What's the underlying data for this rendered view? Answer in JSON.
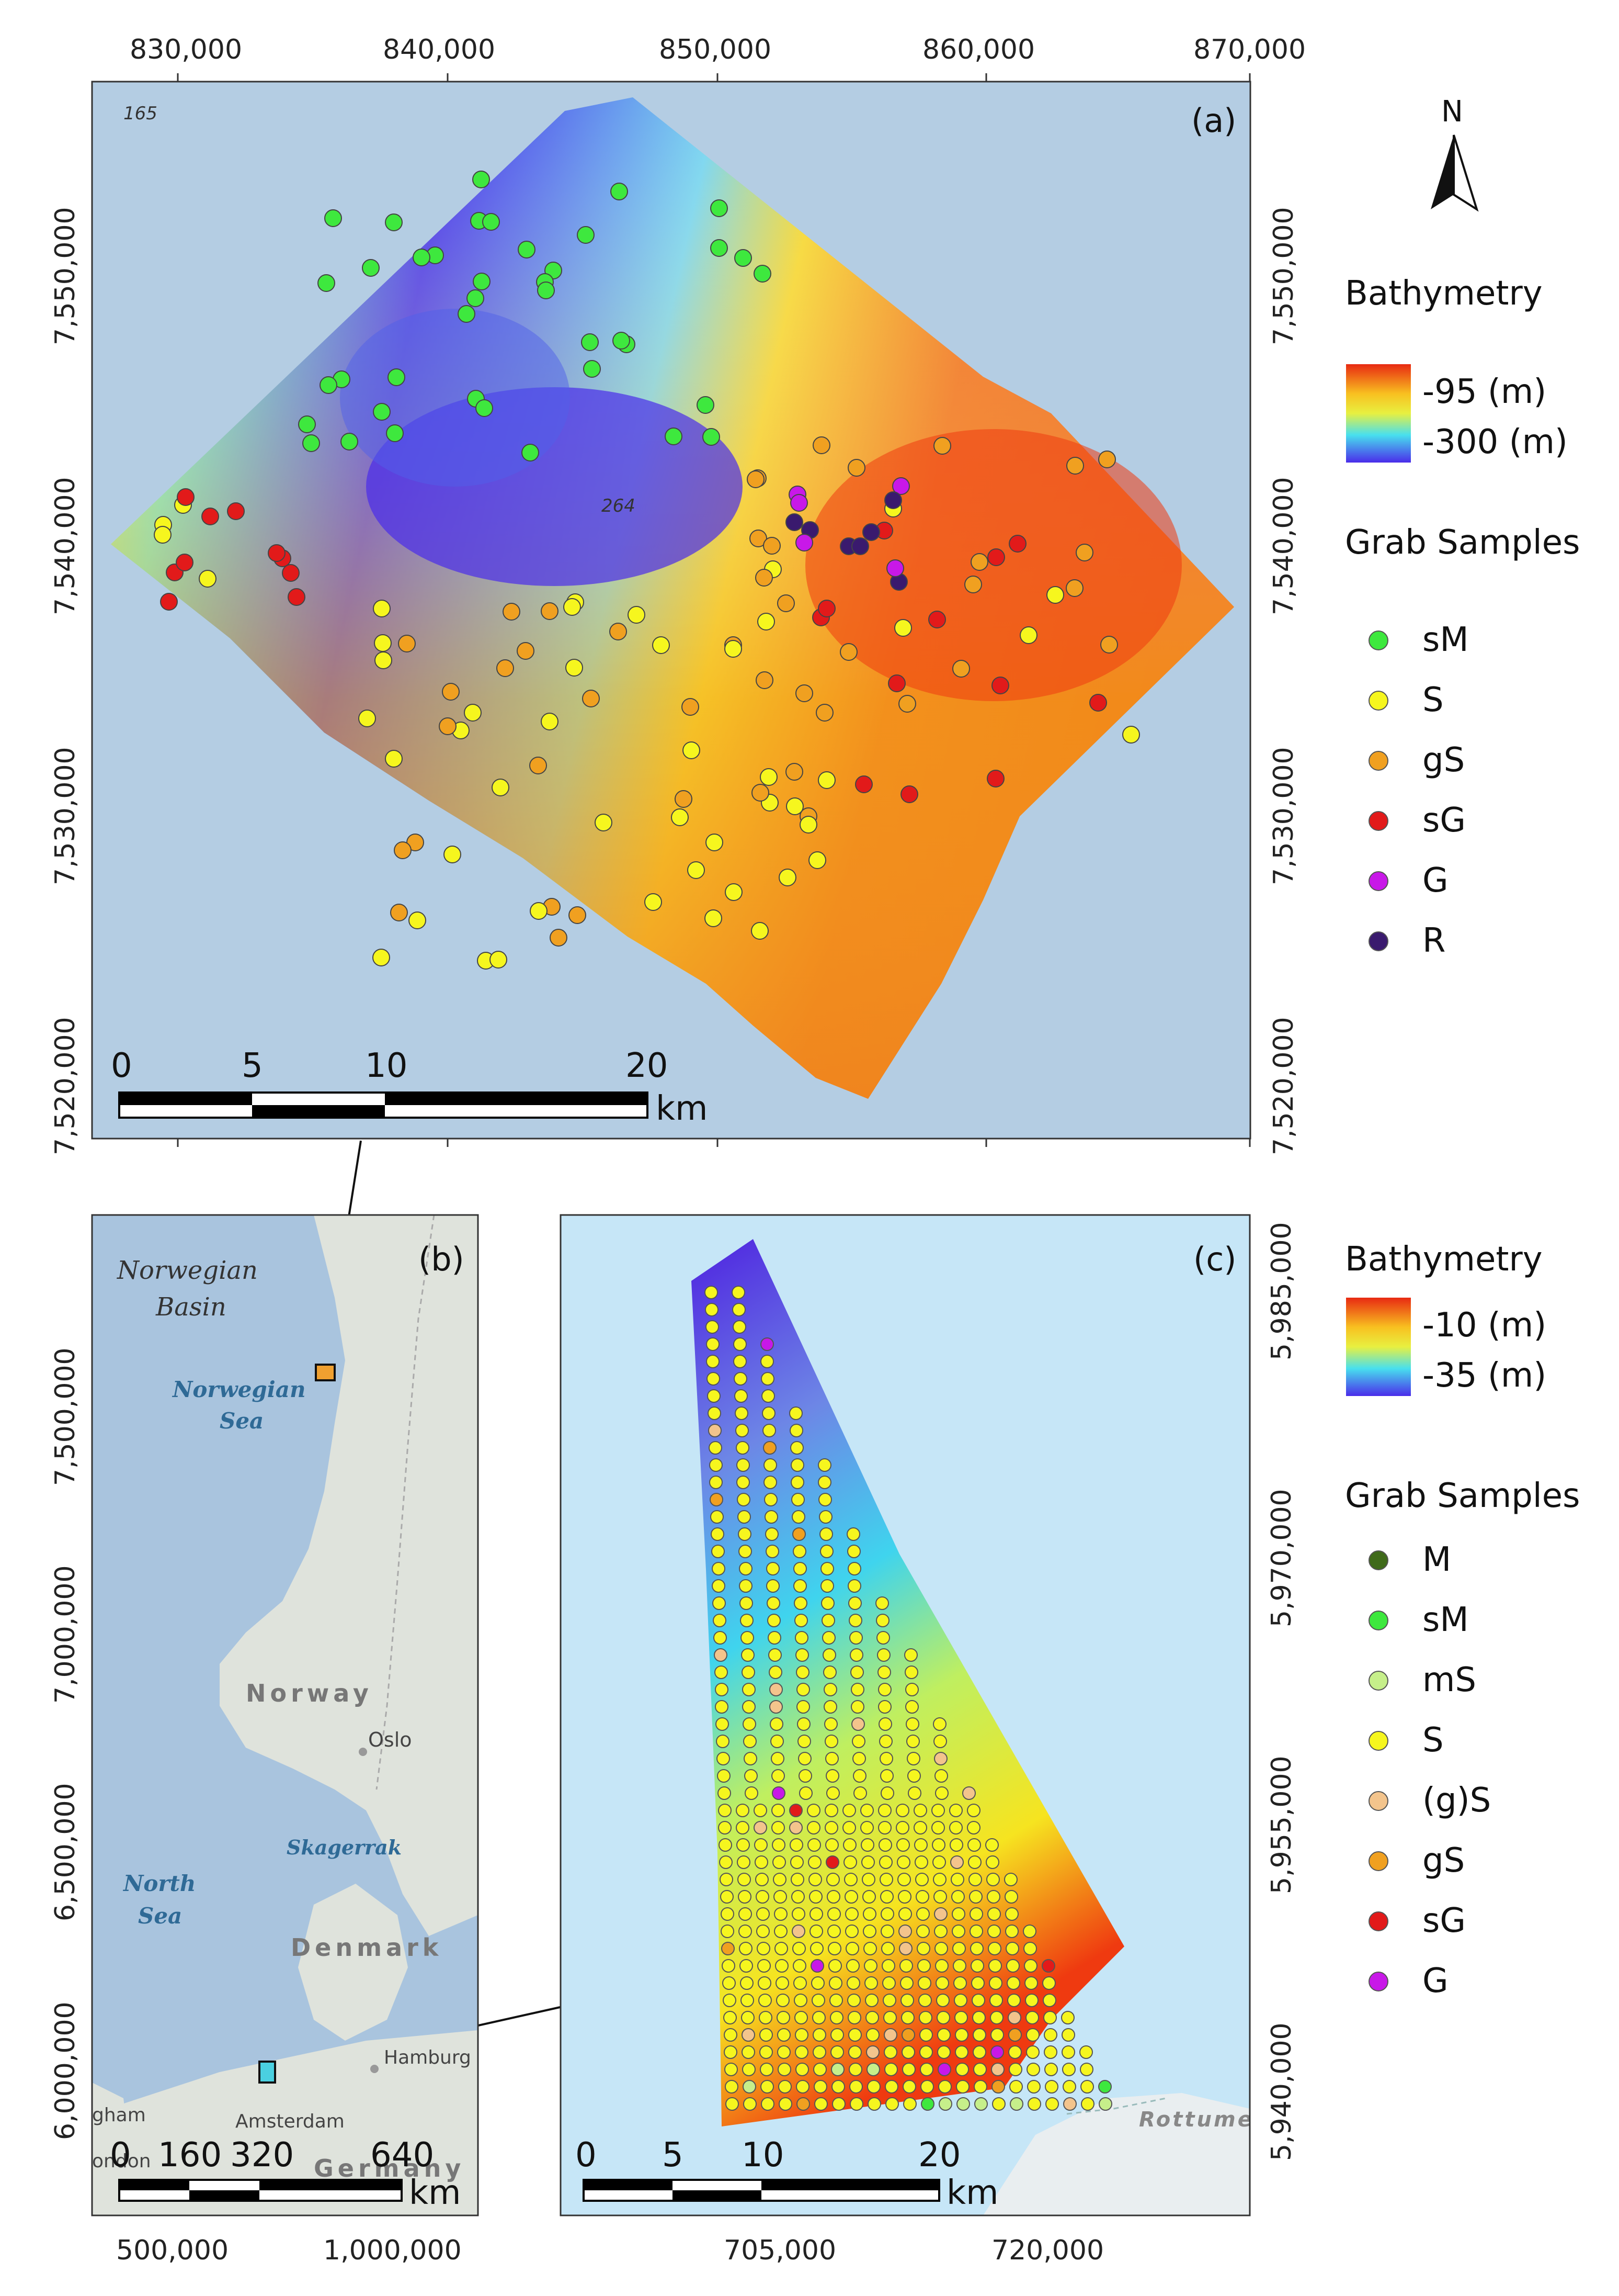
{
  "panels": {
    "a": {
      "label": "(a)",
      "x_ticks": [
        "830,000",
        "840,000",
        "850,000",
        "860,000",
        "870,000"
      ],
      "y_ticks": [
        "7,550,000",
        "7,540,000",
        "7,530,000",
        "7,520,000"
      ],
      "depth_labels": [
        "165",
        "264"
      ],
      "scale": {
        "ticks": [
          "0",
          "5",
          "10",
          "20"
        ],
        "unit": "km"
      }
    },
    "b": {
      "label": "(b)",
      "x_ticks": [
        "500,000",
        "1,000,000"
      ],
      "y_ticks": [
        "7,500,000",
        "7,000,000",
        "6,500,000",
        "6,000,000"
      ],
      "places": {
        "norwegian_basin_1": "Norwegian",
        "norwegian_basin_2": "Basin",
        "norwegian_sea_1": "Norwegian",
        "norwegian_sea_2": "Sea",
        "norway": "Norway",
        "oslo": "Oslo",
        "skagerrak": "Skagerrak",
        "north_sea_1": "North",
        "north_sea_2": "Sea",
        "denmark": "Denmark",
        "hamburg": "Hamburg",
        "amsterdam": "Amsterdam",
        "germany": "Germany",
        "gham": "gham",
        "ondon": "ondon"
      },
      "scale": {
        "ticks": [
          "0",
          "160",
          "320",
          "640"
        ],
        "unit": "km"
      }
    },
    "c": {
      "label": "(c)",
      "x_ticks": [
        "705,000",
        "720,000"
      ],
      "y_ticks": [
        "5,985,000",
        "5,970,000",
        "5,955,000",
        "5,940,000"
      ],
      "places": {
        "rottumeroog": "Rottume"
      },
      "scale": {
        "ticks": [
          "0",
          "5",
          "10",
          "20"
        ],
        "unit": "km"
      }
    }
  },
  "north_arrow": {
    "label": "N"
  },
  "legend_a": {
    "bathymetry_title": "Bathymetry",
    "bathy_high": "-95 (m)",
    "bathy_low": "-300 (m)",
    "grab_title": "Grab Samples",
    "items": [
      {
        "label": "sM",
        "color": "#3ee83e"
      },
      {
        "label": "S",
        "color": "#f6f61e"
      },
      {
        "label": "gS",
        "color": "#f0a020"
      },
      {
        "label": "sG",
        "color": "#e21a1a"
      },
      {
        "label": "G",
        "color": "#c818e8"
      },
      {
        "label": "R",
        "color": "#3a1a6e"
      }
    ]
  },
  "legend_c": {
    "bathymetry_title": "Bathymetry",
    "bathy_high": "-10 (m)",
    "bathy_low": "-35 (m)",
    "grab_title": "Grab Samples",
    "items": [
      {
        "label": "M",
        "color": "#3f6a1a"
      },
      {
        "label": "sM",
        "color": "#3ee83e"
      },
      {
        "label": "mS",
        "color": "#c6ef8a"
      },
      {
        "label": "S",
        "color": "#f6f61e"
      },
      {
        "label": "(g)S",
        "color": "#f3c48c"
      },
      {
        "label": "gS",
        "color": "#f0a020"
      },
      {
        "label": "sG",
        "color": "#e21a1a"
      },
      {
        "label": "G",
        "color": "#c818e8"
      }
    ]
  },
  "colors": {
    "sea": "#b4cde3",
    "land": "#dfe3dc",
    "bathy_deep": "#4a2ee8",
    "bathy_mid": "#52e0ea",
    "bathy_shallow": "#e83a10"
  }
}
